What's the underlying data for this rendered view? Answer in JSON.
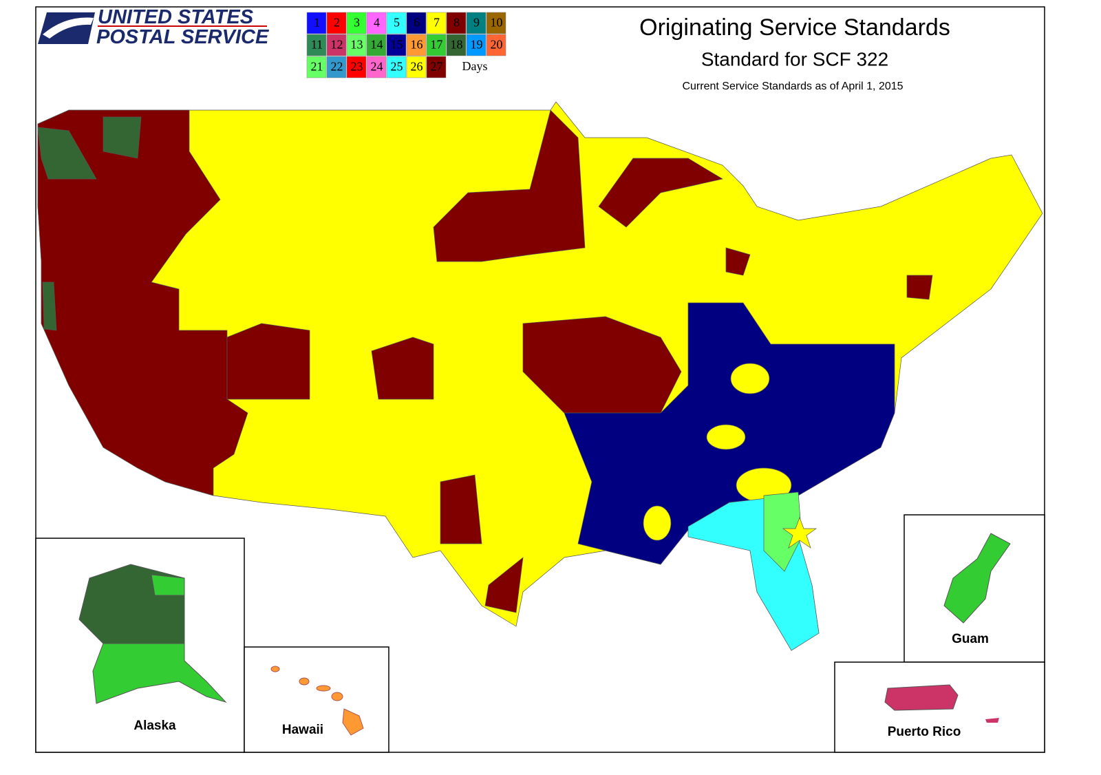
{
  "header": {
    "logo_line1": "UNITED STATES",
    "logo_line2": "POSTAL SERVICE",
    "title": "Originating Service Standards",
    "subtitle": "Standard for SCF 322",
    "note": "Current Service Standards as of April 1, 2015"
  },
  "legend": {
    "unit": "Days",
    "items": [
      {
        "label": 1,
        "color": "#1010ff"
      },
      {
        "label": 2,
        "color": "#ff0000"
      },
      {
        "label": 3,
        "color": "#33ff33"
      },
      {
        "label": 4,
        "color": "#ff66ff"
      },
      {
        "label": 5,
        "color": "#33ffff"
      },
      {
        "label": 6,
        "color": "#000080"
      },
      {
        "label": 7,
        "color": "#ffff00"
      },
      {
        "label": 8,
        "color": "#800000"
      },
      {
        "label": 9,
        "color": "#008080"
      },
      {
        "label": 10,
        "color": "#996600"
      },
      {
        "label": 11,
        "color": "#2e8b57"
      },
      {
        "label": 12,
        "color": "#cc3366"
      },
      {
        "label": 13,
        "color": "#66ff66"
      },
      {
        "label": 14,
        "color": "#33aa33"
      },
      {
        "label": 15,
        "color": "#000099"
      },
      {
        "label": 16,
        "color": "#ff9933"
      },
      {
        "label": 17,
        "color": "#33cc33"
      },
      {
        "label": 18,
        "color": "#336633"
      },
      {
        "label": 19,
        "color": "#0099ff"
      },
      {
        "label": 20,
        "color": "#ff6633"
      },
      {
        "label": 21,
        "color": "#66ff66"
      },
      {
        "label": 22,
        "color": "#3399cc"
      },
      {
        "label": 23,
        "color": "#ff0000"
      },
      {
        "label": 24,
        "color": "#ff66cc"
      },
      {
        "label": 25,
        "color": "#33ffff"
      },
      {
        "label": 26,
        "color": "#ffff00"
      },
      {
        "label": 27,
        "color": "#800000"
      }
    ]
  },
  "insets": {
    "alaska": "Alaska",
    "hawaii": "Hawaii",
    "guam": "Guam",
    "puerto_rico": "Puerto Rico"
  }
}
